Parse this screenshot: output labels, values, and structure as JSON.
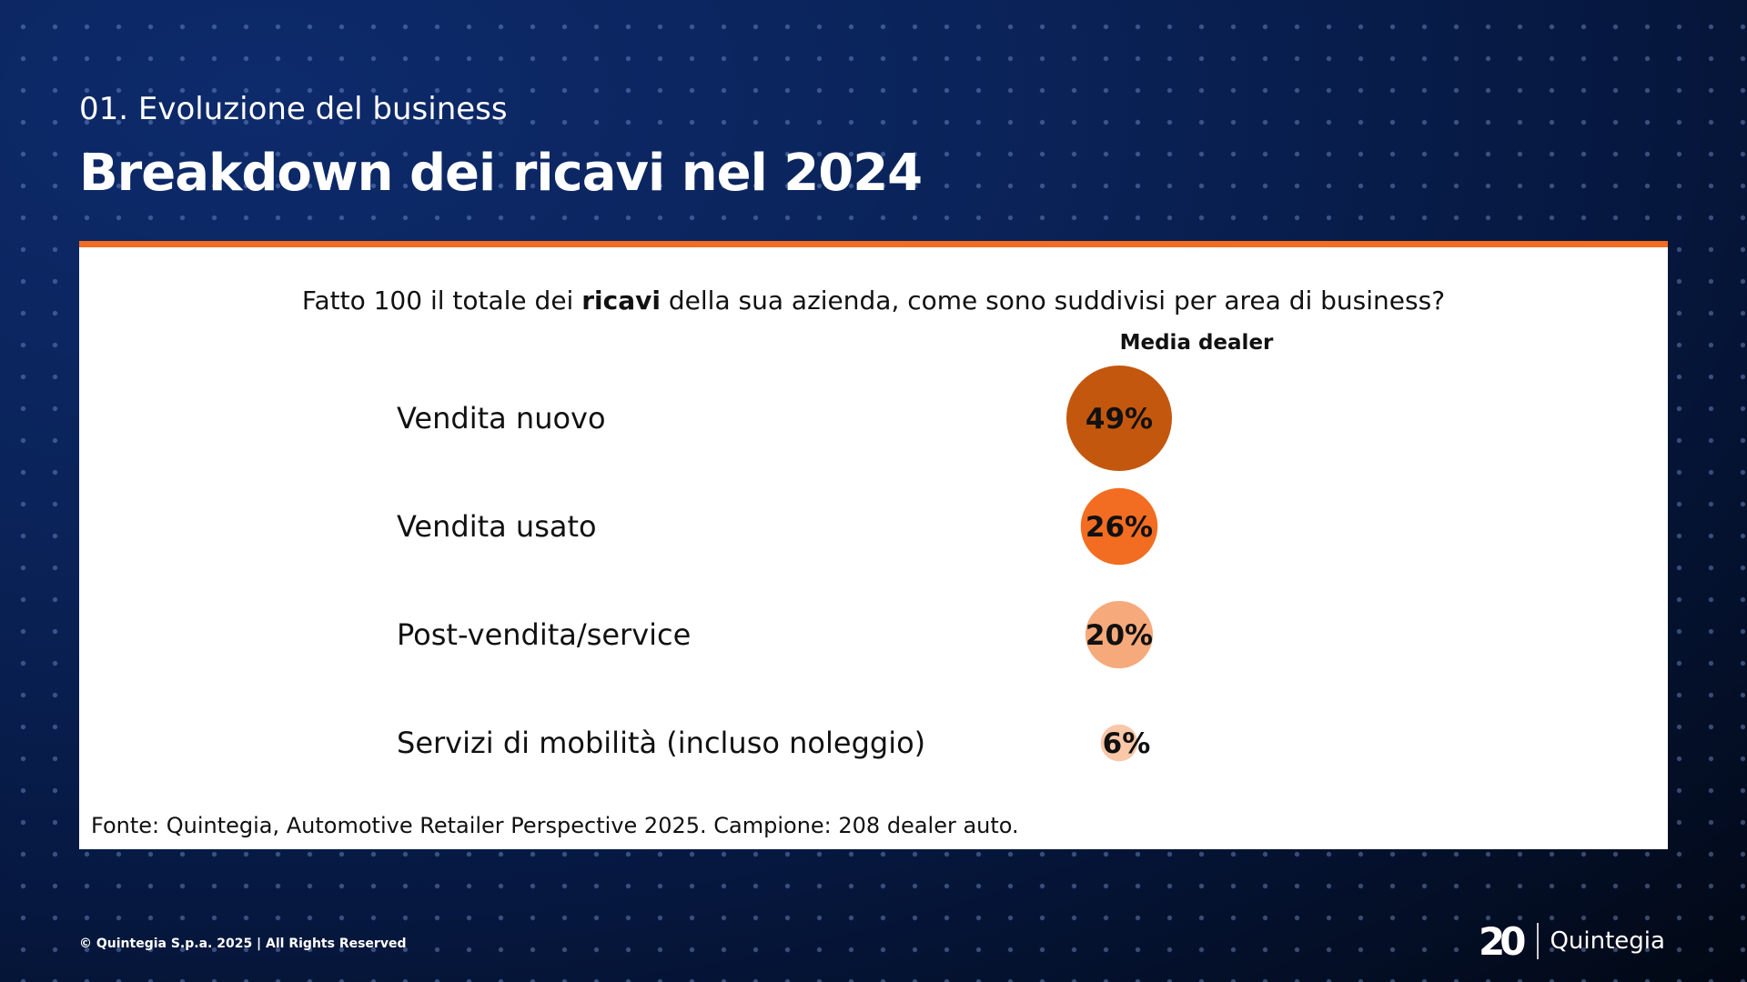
{
  "header": {
    "section": "01. Evoluzione del business",
    "title": "Breakdown dei ricavi nel 2024"
  },
  "question": {
    "before": "Fatto 100 il totale dei ",
    "bold": "ricavi",
    "after": " della sua azienda, come sono suddivisi per area di business?"
  },
  "chart_data": {
    "type": "bubble",
    "column_header": "Media dealer",
    "categories": [
      "Vendita nuovo",
      "Vendita usato",
      "Post-vendita/service",
      "Servizi di mobilità (incluso noleggio)"
    ],
    "values": [
      49,
      26,
      20,
      6
    ],
    "value_labels": [
      "49%",
      "26%",
      "20%",
      "6%"
    ],
    "colors": [
      "#c4570e",
      "#f26d21",
      "#f6a97a",
      "#f9c8a8"
    ]
  },
  "source": "Fonte: Quintegia, Automotive Retailer Perspective 2025. Campione: 208 dealer auto.",
  "footer": {
    "copyright": "© Quintegia S.p.a. 2025 | All Rights Reserved",
    "logo_number": "20",
    "logo_brand": "Quintegia"
  }
}
